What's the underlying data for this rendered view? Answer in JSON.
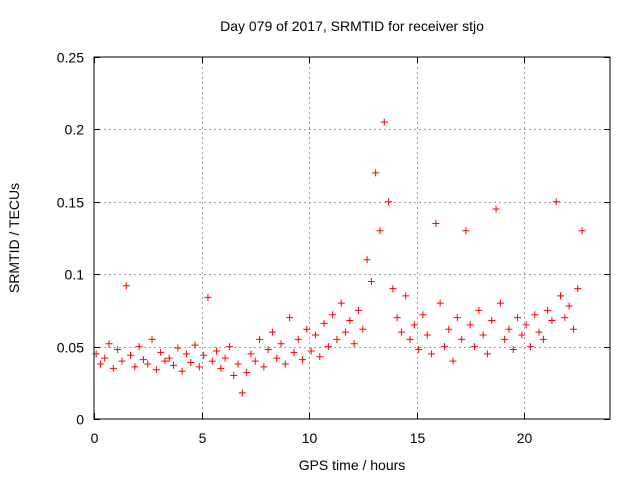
{
  "chart_data": {
    "type": "scatter",
    "title": "Day 079 of 2017, SRMTID for receiver stjo",
    "xlabel": "GPS time / hours",
    "ylabel": "SRMTID / TECUs",
    "xlim": [
      0,
      24
    ],
    "ylim": [
      0,
      0.25
    ],
    "xticks": [
      0,
      5,
      10,
      15,
      20
    ],
    "xtick_labels": [
      "0",
      "5",
      "10",
      "15",
      "20"
    ],
    "yticks": [
      0,
      0.05,
      0.1,
      0.15,
      0.2,
      0.25
    ],
    "ytick_labels": [
      "0",
      "0.05",
      "0.1",
      "0.15",
      "0.2",
      "0.25"
    ],
    "grid": true,
    "marker": "+",
    "series": [
      {
        "name": "SRMTID",
        "color": "#ff0000",
        "points": [
          [
            0.1,
            0.045
          ],
          [
            0.3,
            0.038
          ],
          [
            0.5,
            0.042
          ],
          [
            0.7,
            0.052
          ],
          [
            0.9,
            0.035
          ],
          [
            1.1,
            0.048
          ],
          [
            1.3,
            0.04
          ],
          [
            1.5,
            0.092
          ],
          [
            1.7,
            0.044
          ],
          [
            1.9,
            0.036
          ],
          [
            2.1,
            0.05
          ],
          [
            2.3,
            0.041
          ],
          [
            2.5,
            0.038
          ],
          [
            2.7,
            0.055
          ],
          [
            2.9,
            0.034
          ],
          [
            3.1,
            0.046
          ],
          [
            3.3,
            0.04
          ],
          [
            3.5,
            0.042
          ],
          [
            3.7,
            0.037
          ],
          [
            3.9,
            0.049
          ],
          [
            4.1,
            0.033
          ],
          [
            4.3,
            0.045
          ],
          [
            4.5,
            0.039
          ],
          [
            4.7,
            0.051
          ],
          [
            4.9,
            0.036
          ],
          [
            5.1,
            0.044
          ],
          [
            5.3,
            0.084
          ],
          [
            5.5,
            0.04
          ],
          [
            5.7,
            0.047
          ],
          [
            5.9,
            0.035
          ],
          [
            6.1,
            0.042
          ],
          [
            6.3,
            0.05
          ],
          [
            6.5,
            0.03
          ],
          [
            6.7,
            0.038
          ],
          [
            6.9,
            0.018
          ],
          [
            7.1,
            0.032
          ],
          [
            7.3,
            0.045
          ],
          [
            7.5,
            0.04
          ],
          [
            7.7,
            0.055
          ],
          [
            7.9,
            0.036
          ],
          [
            8.1,
            0.048
          ],
          [
            8.3,
            0.06
          ],
          [
            8.5,
            0.042
          ],
          [
            8.7,
            0.052
          ],
          [
            8.9,
            0.038
          ],
          [
            9.1,
            0.07
          ],
          [
            9.3,
            0.046
          ],
          [
            9.5,
            0.055
          ],
          [
            9.7,
            0.041
          ],
          [
            9.9,
            0.062
          ],
          [
            10.1,
            0.047
          ],
          [
            10.3,
            0.058
          ],
          [
            10.5,
            0.043
          ],
          [
            10.7,
            0.066
          ],
          [
            10.9,
            0.05
          ],
          [
            11.1,
            0.072
          ],
          [
            11.3,
            0.055
          ],
          [
            11.5,
            0.08
          ],
          [
            11.7,
            0.06
          ],
          [
            11.9,
            0.068
          ],
          [
            12.1,
            0.052
          ],
          [
            12.3,
            0.075
          ],
          [
            12.5,
            0.062
          ],
          [
            12.7,
            0.11
          ],
          [
            12.9,
            0.095
          ],
          [
            13.1,
            0.17
          ],
          [
            13.3,
            0.13
          ],
          [
            13.5,
            0.205
          ],
          [
            13.7,
            0.15
          ],
          [
            13.9,
            0.09
          ],
          [
            14.1,
            0.07
          ],
          [
            14.3,
            0.06
          ],
          [
            14.5,
            0.085
          ],
          [
            14.7,
            0.055
          ],
          [
            14.9,
            0.065
          ],
          [
            15.1,
            0.048
          ],
          [
            15.3,
            0.072
          ],
          [
            15.5,
            0.058
          ],
          [
            15.7,
            0.045
          ],
          [
            15.9,
            0.135
          ],
          [
            16.1,
            0.08
          ],
          [
            16.3,
            0.05
          ],
          [
            16.5,
            0.062
          ],
          [
            16.7,
            0.04
          ],
          [
            16.9,
            0.07
          ],
          [
            17.1,
            0.055
          ],
          [
            17.3,
            0.13
          ],
          [
            17.5,
            0.065
          ],
          [
            17.7,
            0.05
          ],
          [
            17.9,
            0.075
          ],
          [
            18.1,
            0.058
          ],
          [
            18.3,
            0.045
          ],
          [
            18.5,
            0.068
          ],
          [
            18.7,
            0.145
          ],
          [
            18.9,
            0.08
          ],
          [
            19.1,
            0.055
          ],
          [
            19.3,
            0.062
          ],
          [
            19.5,
            0.048
          ],
          [
            19.7,
            0.07
          ],
          [
            19.9,
            0.058
          ],
          [
            20.1,
            0.065
          ],
          [
            20.3,
            0.05
          ],
          [
            20.5,
            0.072
          ],
          [
            20.7,
            0.06
          ],
          [
            20.9,
            0.055
          ],
          [
            21.1,
            0.075
          ],
          [
            21.3,
            0.068
          ],
          [
            21.5,
            0.15
          ],
          [
            21.7,
            0.085
          ],
          [
            21.9,
            0.07
          ],
          [
            22.1,
            0.078
          ],
          [
            22.3,
            0.062
          ],
          [
            22.5,
            0.09
          ],
          [
            22.7,
            0.13
          ]
        ]
      }
    ]
  }
}
